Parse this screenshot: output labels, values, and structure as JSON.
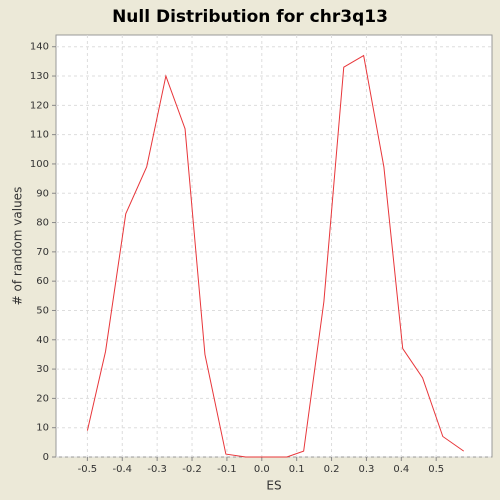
{
  "chart_data": {
    "type": "line",
    "title": "Null Distribution for chr3q13",
    "xlabel": "ES",
    "ylabel": "# of random values",
    "series": [
      {
        "name": "null",
        "color": "#e8363a",
        "x": [
          -0.5,
          -0.448,
          -0.39,
          -0.33,
          -0.275,
          -0.22,
          -0.163,
          -0.103,
          -0.046,
          0.014,
          0.072,
          0.12,
          0.178,
          0.235,
          0.292,
          0.35,
          0.404,
          0.461,
          0.519,
          0.579
        ],
        "values": [
          9,
          36,
          83,
          99,
          130,
          112,
          35,
          1,
          0,
          0,
          0,
          2,
          53,
          133,
          137,
          99,
          37,
          27,
          7,
          2
        ]
      }
    ],
    "xlim": [
      -0.59,
      0.66
    ],
    "ylim": [
      0,
      144
    ],
    "xticks": [
      -0.5,
      -0.4,
      -0.3,
      -0.2,
      -0.1,
      {
        "value": 0,
        "label": "0.0"
      },
      0.1,
      0.2,
      0.3,
      0.4,
      0.5
    ],
    "yticks": [
      0,
      10,
      20,
      30,
      40,
      50,
      60,
      70,
      80,
      90,
      100,
      110,
      120,
      130,
      140
    ],
    "grid": true
  }
}
